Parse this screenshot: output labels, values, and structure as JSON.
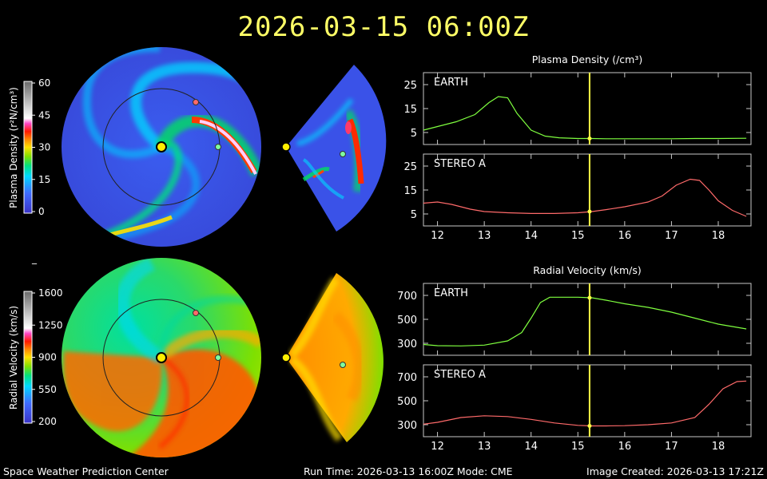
{
  "header": {
    "timestamp": "2026-03-15  06:00Z"
  },
  "footer": {
    "center": "Space Weather Prediction Center",
    "run": "Run Time: 2026-03-13 16:00Z  Mode: CME",
    "created": "Image Created: 2026-03-13 17:21Z"
  },
  "colorbars": {
    "density": {
      "label": "Plasma Density (r²N/cm³)",
      "ticks": [
        "60",
        "45",
        "30",
        "15",
        "0"
      ]
    },
    "velocity": {
      "label": "Radial Velocity (km/s)",
      "ticks": [
        "1600",
        "1250",
        "900",
        "550",
        "200"
      ]
    }
  },
  "separator_mark": "_",
  "colors": {
    "earth_line": "#7fff3f",
    "stereo_line": "#ff6a6a",
    "cursor": "#ffff44",
    "frame": "#c8c8c8"
  },
  "chart_data": [
    {
      "type": "line",
      "title": "Plasma Density (/cm³)",
      "panel_label": "EARTH",
      "series": [
        {
          "color": "#7fff3f",
          "x": [
            11.7,
            12.0,
            12.4,
            12.8,
            13.1,
            13.3,
            13.5,
            13.7,
            14.0,
            14.3,
            14.6,
            15.0,
            15.3,
            15.6,
            16.0,
            16.5,
            17.0,
            17.5,
            18.0,
            18.6
          ],
          "values": [
            6.0,
            7.5,
            9.5,
            12.5,
            17.5,
            20.0,
            19.5,
            13.0,
            6.0,
            3.5,
            2.8,
            2.5,
            2.5,
            2.4,
            2.4,
            2.4,
            2.4,
            2.5,
            2.5,
            2.6
          ]
        }
      ],
      "ytick_labels": [
        "25",
        "15",
        "5"
      ],
      "yticks": [
        25,
        15,
        5
      ],
      "ylim": [
        0,
        30
      ],
      "xlim": [
        11.7,
        18.7
      ],
      "cursor_x": 15.25,
      "cursor_value": 2.5
    },
    {
      "type": "line",
      "panel_label": "STEREO A",
      "series": [
        {
          "color": "#ff6a6a",
          "x": [
            11.7,
            12.0,
            12.3,
            12.7,
            13.0,
            13.5,
            14.0,
            14.5,
            15.0,
            15.3,
            15.6,
            16.0,
            16.5,
            16.8,
            17.1,
            17.4,
            17.6,
            17.8,
            18.0,
            18.3,
            18.6
          ],
          "values": [
            9.5,
            10.0,
            9.0,
            7.0,
            6.0,
            5.5,
            5.2,
            5.2,
            5.5,
            6.0,
            6.8,
            8.0,
            10.0,
            12.5,
            17.0,
            19.5,
            19.0,
            15.0,
            10.5,
            6.5,
            4.0
          ]
        }
      ],
      "ytick_labels": [
        "25",
        "15",
        "5"
      ],
      "yticks": [
        25,
        15,
        5
      ],
      "ylim": [
        0,
        30
      ],
      "xlim": [
        11.7,
        18.7
      ],
      "cursor_x": 15.25,
      "cursor_value": 6.0
    },
    {
      "type": "line",
      "title": "Radial Velocity (km/s)",
      "panel_label": "EARTH",
      "series": [
        {
          "color": "#7fff3f",
          "x": [
            11.7,
            12.0,
            12.5,
            13.0,
            13.5,
            13.8,
            14.0,
            14.2,
            14.4,
            14.7,
            15.0,
            15.3,
            15.6,
            16.0,
            16.5,
            17.0,
            17.5,
            18.0,
            18.6
          ],
          "values": [
            290,
            280,
            278,
            285,
            320,
            390,
            510,
            640,
            685,
            685,
            685,
            680,
            660,
            630,
            600,
            560,
            510,
            460,
            420
          ]
        }
      ],
      "ytick_labels": [
        "700",
        "500",
        "300"
      ],
      "yticks": [
        700,
        500,
        300
      ],
      "ylim": [
        200,
        800
      ],
      "xlim": [
        11.7,
        18.7
      ],
      "cursor_x": 15.25,
      "cursor_value": 680
    },
    {
      "type": "line",
      "panel_label": "STEREO A",
      "series": [
        {
          "color": "#ff6a6a",
          "x": [
            11.7,
            12.0,
            12.5,
            13.0,
            13.5,
            14.0,
            14.5,
            15.0,
            15.3,
            15.6,
            16.0,
            16.5,
            17.0,
            17.5,
            17.8,
            18.1,
            18.4,
            18.6
          ],
          "values": [
            305,
            320,
            360,
            375,
            368,
            345,
            315,
            295,
            290,
            290,
            292,
            300,
            315,
            360,
            470,
            600,
            660,
            665
          ]
        }
      ],
      "ytick_labels": [
        "700",
        "500",
        "300"
      ],
      "yticks": [
        700,
        500,
        300
      ],
      "ylim": [
        200,
        800
      ],
      "xlim": [
        11.7,
        18.7
      ],
      "cursor_x": 15.25,
      "cursor_value": 290
    }
  ],
  "xtick_labels": [
    "12",
    "13",
    "14",
    "15",
    "16",
    "17",
    "18"
  ],
  "xticks": [
    12,
    13,
    14,
    15,
    16,
    17,
    18
  ]
}
